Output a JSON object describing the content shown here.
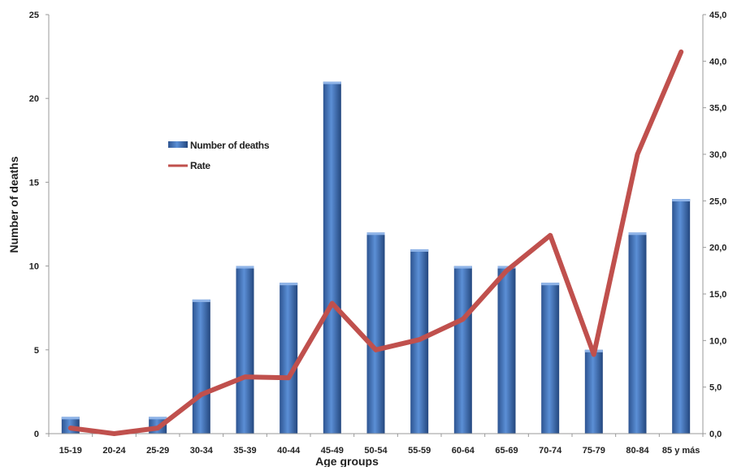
{
  "chart_data": {
    "type": "bar",
    "categories": [
      "15-19",
      "20-24",
      "25-29",
      "30-34",
      "35-39",
      "40-44",
      "45-49",
      "50-54",
      "55-59",
      "60-64",
      "65-69",
      "70-74",
      "75-79",
      "80-84",
      "85 y más"
    ],
    "series": [
      {
        "name": "Number of deaths",
        "type": "bar",
        "axis": "left",
        "color": "#3f6fb5",
        "values": [
          1,
          0,
          1,
          8,
          10,
          9,
          21,
          12,
          11,
          10,
          10,
          9,
          5,
          12,
          14
        ]
      },
      {
        "name": "Rate",
        "type": "line",
        "axis": "right",
        "color": "#c0504d",
        "values": [
          0.6,
          0.0,
          0.6,
          4.2,
          6.1,
          6.0,
          14.0,
          9.0,
          10.1,
          12.3,
          17.5,
          21.3,
          8.5,
          30.0,
          41.0
        ]
      }
    ],
    "xlabel": "Age groups",
    "ylabel": "Number of deaths",
    "ylim": [
      0,
      25
    ],
    "yticks": [
      "0",
      "5",
      "10",
      "15",
      "20",
      "25"
    ],
    "y2lim": [
      0,
      45
    ],
    "y2ticks": [
      "0,0",
      "5,0",
      "10,0",
      "15,0",
      "20,0",
      "25,0",
      "30,0",
      "35,0",
      "40,0",
      "45,0"
    ],
    "legend_position": "upper-left inside plot",
    "grid": false
  }
}
